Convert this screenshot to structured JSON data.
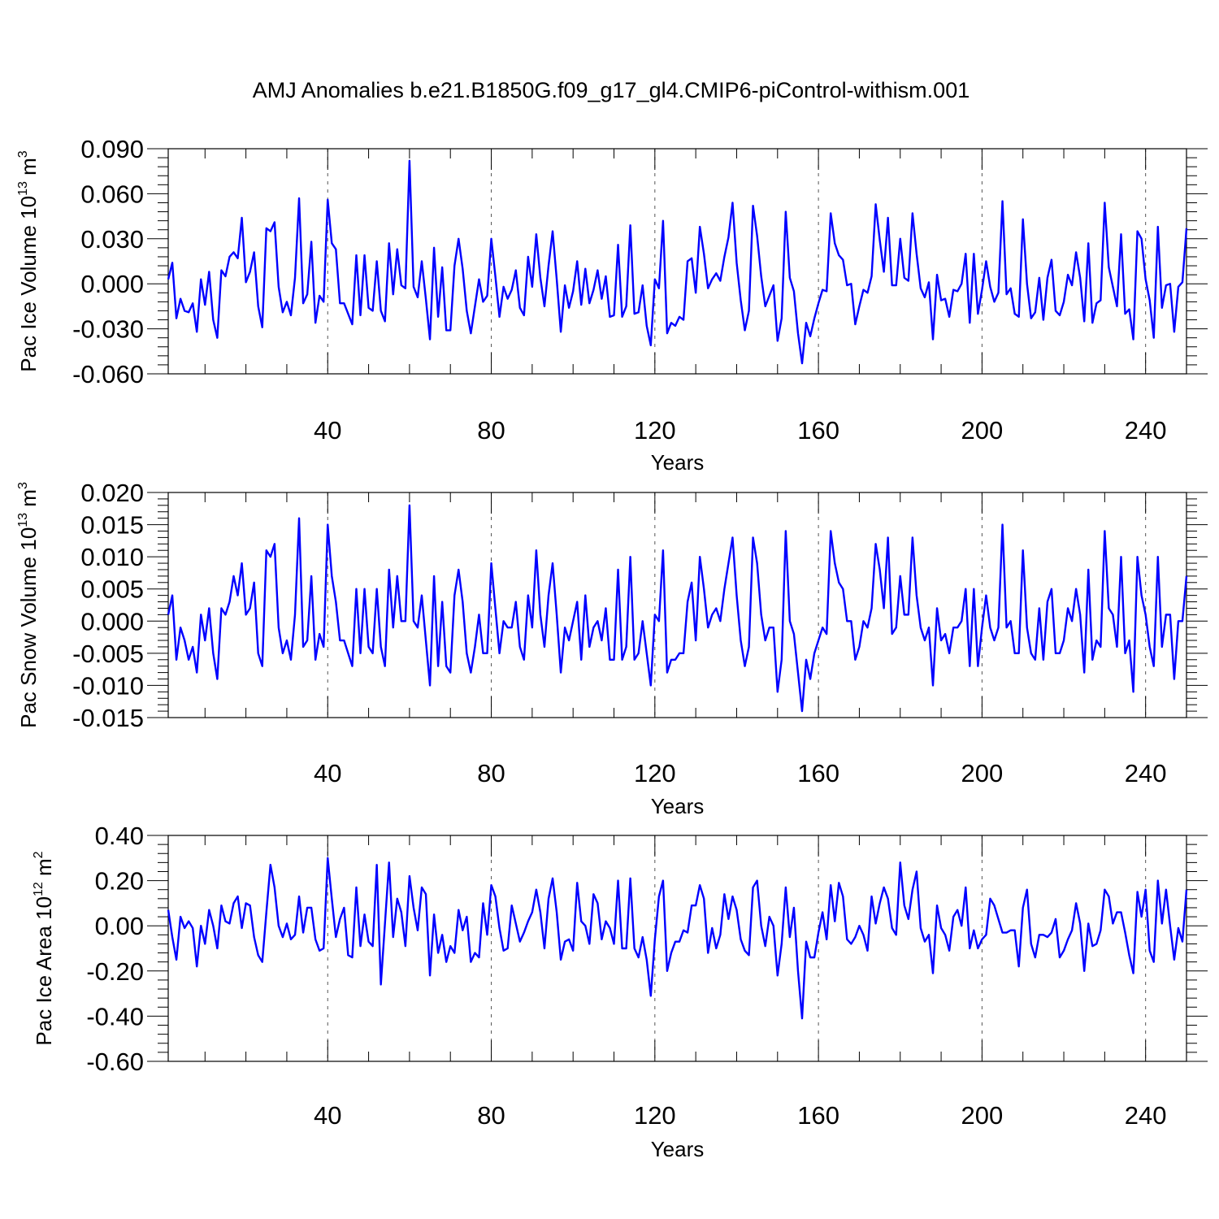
{
  "figure_title": "AMJ Anomalies b.e21.B1850G.f09_g17_gl4.CMIP6-piControl-withism.001",
  "colors": {
    "line": "#0000ff",
    "axis": "#000000",
    "grid": "#555555",
    "background": "#ffffff"
  },
  "chart_data": [
    {
      "type": "line",
      "title": "AMJ Anomalies b.e21.B1850G.f09_g17_gl4.CMIP6-piControl-withism.001",
      "xlabel": "Years",
      "ylabel": {
        "text": "Pac Ice Volume 10",
        "sup1": "13",
        "mid": " m",
        "sup2": "3"
      },
      "xlim": [
        1,
        250
      ],
      "ylim": [
        -0.06,
        0.09
      ],
      "yticks": [
        -0.06,
        -0.03,
        0.0,
        0.03,
        0.06,
        0.09
      ],
      "ytick_labels": [
        "-0.060",
        "-0.030",
        "0.000",
        "0.030",
        "0.060",
        "0.090"
      ],
      "xticks": [
        40,
        80,
        120,
        160,
        200,
        240
      ],
      "xtick_labels": [
        "40",
        "80",
        "120",
        "160",
        "200",
        "240"
      ],
      "grid": "vertical dashed at major x ticks",
      "series": [
        {
          "name": "Pac Ice Volume",
          "values": [
            0.003,
            0.014,
            -0.023,
            -0.01,
            -0.018,
            -0.019,
            -0.013,
            -0.032,
            0.003,
            -0.014,
            0.008,
            -0.024,
            -0.036,
            0.009,
            0.005,
            0.018,
            0.021,
            0.017,
            0.044,
            0.001,
            0.008,
            0.021,
            -0.015,
            -0.029,
            0.037,
            0.035,
            0.041,
            -0.002,
            -0.019,
            -0.012,
            -0.021,
            0.004,
            0.057,
            -0.013,
            -0.007,
            0.028,
            -0.026,
            -0.008,
            -0.012,
            0.056,
            0.027,
            0.023,
            -0.013,
            -0.013,
            -0.02,
            -0.027,
            0.019,
            -0.021,
            0.019,
            -0.016,
            -0.018,
            0.015,
            -0.018,
            -0.025,
            0.027,
            -0.007,
            0.023,
            -0.001,
            -0.003,
            0.082,
            -0.002,
            -0.009,
            0.015,
            -0.01,
            -0.037,
            0.024,
            -0.022,
            0.011,
            -0.031,
            -0.031,
            0.012,
            0.03,
            0.01,
            -0.018,
            -0.033,
            -0.015,
            0.003,
            -0.012,
            -0.008,
            0.03,
            0.005,
            -0.022,
            -0.002,
            -0.01,
            -0.004,
            0.009,
            -0.016,
            -0.021,
            0.018,
            -0.002,
            0.033,
            0.004,
            -0.015,
            0.012,
            0.035,
            0.003,
            -0.032,
            -0.001,
            -0.016,
            -0.005,
            0.015,
            -0.014,
            0.01,
            -0.013,
            -0.004,
            0.009,
            -0.01,
            0.005,
            -0.022,
            -0.021,
            0.026,
            -0.022,
            -0.015,
            0.039,
            -0.02,
            -0.019,
            -0.001,
            -0.028,
            -0.041,
            0.003,
            -0.003,
            0.042,
            -0.033,
            -0.026,
            -0.028,
            -0.022,
            -0.024,
            0.015,
            0.017,
            -0.006,
            0.038,
            0.02,
            -0.003,
            0.003,
            0.007,
            0.002,
            0.018,
            0.031,
            0.054,
            0.014,
            -0.011,
            -0.031,
            -0.018,
            0.052,
            0.032,
            0.005,
            -0.015,
            -0.008,
            -0.001,
            -0.038,
            -0.023,
            0.048,
            0.004,
            -0.005,
            -0.033,
            -0.053,
            -0.026,
            -0.035,
            -0.023,
            -0.013,
            -0.004,
            -0.005,
            0.047,
            0.027,
            0.019,
            0.016,
            -0.001,
            0.0,
            -0.027,
            -0.015,
            -0.004,
            -0.006,
            0.005,
            0.053,
            0.029,
            0.008,
            0.044,
            -0.001,
            -0.001,
            0.03,
            0.004,
            0.002,
            0.047,
            0.02,
            -0.003,
            -0.009,
            0.001,
            -0.037,
            0.006,
            -0.011,
            -0.01,
            -0.022,
            -0.004,
            -0.005,
            0.0,
            0.02,
            -0.026,
            0.02,
            -0.02,
            -0.004,
            0.015,
            -0.002,
            -0.012,
            -0.006,
            0.055,
            -0.007,
            -0.003,
            -0.02,
            -0.022,
            0.043,
            0.0,
            -0.023,
            -0.019,
            0.004,
            -0.024,
            0.004,
            0.016,
            -0.018,
            -0.021,
            -0.012,
            0.006,
            -0.001,
            0.021,
            0.004,
            -0.025,
            0.027,
            -0.026,
            -0.013,
            -0.011,
            0.054,
            0.011,
            -0.002,
            -0.015,
            0.033,
            -0.02,
            -0.017,
            -0.037,
            0.035,
            0.03,
            0.003,
            -0.011,
            -0.036,
            0.038,
            -0.016,
            -0.001,
            0.0,
            -0.032,
            -0.002,
            0.001,
            0.037
          ]
        }
      ]
    },
    {
      "type": "line",
      "xlabel": "Years",
      "ylabel": {
        "text": "Pac Snow Volume 10",
        "sup1": "13",
        "mid": " m",
        "sup2": "3"
      },
      "xlim": [
        1,
        250
      ],
      "ylim": [
        -0.015,
        0.02
      ],
      "yticks": [
        -0.015,
        -0.01,
        -0.005,
        0.0,
        0.005,
        0.01,
        0.015,
        0.02
      ],
      "ytick_labels": [
        "-0.015",
        "-0.010",
        "-0.005",
        "0.000",
        "0.005",
        "0.010",
        "0.015",
        "0.020"
      ],
      "xticks": [
        40,
        80,
        120,
        160,
        200,
        240
      ],
      "xtick_labels": [
        "40",
        "80",
        "120",
        "160",
        "200",
        "240"
      ],
      "grid": "vertical dashed at major x ticks",
      "series": [
        {
          "name": "Pac Snow Volume",
          "values": [
            0.001,
            0.004,
            -0.006,
            -0.001,
            -0.003,
            -0.006,
            -0.004,
            -0.008,
            0.001,
            -0.003,
            0.002,
            -0.005,
            -0.009,
            0.002,
            0.001,
            0.003,
            0.007,
            0.004,
            0.009,
            0.001,
            0.002,
            0.006,
            -0.005,
            -0.007,
            0.011,
            0.01,
            0.012,
            -0.001,
            -0.005,
            -0.003,
            -0.006,
            0.001,
            0.016,
            -0.004,
            -0.003,
            0.007,
            -0.006,
            -0.002,
            -0.004,
            0.015,
            0.007,
            0.003,
            -0.003,
            -0.003,
            -0.005,
            -0.007,
            0.005,
            -0.005,
            0.005,
            -0.004,
            -0.005,
            0.005,
            -0.004,
            -0.007,
            0.008,
            -0.001,
            0.007,
            0.0,
            0.0,
            0.018,
            0.0,
            -0.001,
            0.004,
            -0.003,
            -0.01,
            0.007,
            -0.007,
            0.003,
            -0.007,
            -0.008,
            0.004,
            0.008,
            0.003,
            -0.005,
            -0.008,
            -0.004,
            0.001,
            -0.005,
            -0.005,
            0.009,
            0.002,
            -0.005,
            0.0,
            -0.001,
            -0.001,
            0.003,
            -0.004,
            -0.006,
            0.004,
            -0.001,
            0.011,
            0.001,
            -0.004,
            0.004,
            0.009,
            0.001,
            -0.008,
            -0.001,
            -0.003,
            0.0,
            0.003,
            -0.006,
            0.004,
            -0.004,
            -0.001,
            0.0,
            -0.003,
            0.002,
            -0.006,
            -0.006,
            0.008,
            -0.006,
            -0.004,
            0.01,
            -0.006,
            -0.005,
            0.0,
            -0.005,
            -0.01,
            0.001,
            0.0,
            0.011,
            -0.008,
            -0.006,
            -0.006,
            -0.005,
            -0.005,
            0.003,
            0.006,
            -0.003,
            0.01,
            0.005,
            -0.001,
            0.001,
            0.002,
            0.0,
            0.005,
            0.009,
            0.013,
            0.004,
            -0.003,
            -0.007,
            -0.004,
            0.013,
            0.009,
            0.001,
            -0.003,
            -0.001,
            -0.001,
            -0.011,
            -0.006,
            0.014,
            0.0,
            -0.002,
            -0.008,
            -0.014,
            -0.006,
            -0.009,
            -0.005,
            -0.003,
            -0.001,
            -0.002,
            0.014,
            0.009,
            0.006,
            0.005,
            0.0,
            0.0,
            -0.006,
            -0.004,
            0.0,
            -0.001,
            0.002,
            0.012,
            0.008,
            0.002,
            0.013,
            -0.002,
            -0.001,
            0.007,
            0.001,
            0.001,
            0.013,
            0.004,
            -0.001,
            -0.003,
            -0.001,
            -0.01,
            0.002,
            -0.003,
            -0.002,
            -0.005,
            -0.001,
            -0.001,
            0.0,
            0.005,
            -0.007,
            0.005,
            -0.007,
            -0.001,
            0.004,
            -0.001,
            -0.003,
            -0.001,
            0.015,
            -0.001,
            0.0,
            -0.005,
            -0.005,
            0.011,
            -0.001,
            -0.005,
            -0.006,
            0.002,
            -0.006,
            0.003,
            0.005,
            -0.005,
            -0.005,
            -0.003,
            0.002,
            0.0,
            0.005,
            0.001,
            -0.008,
            0.008,
            -0.006,
            -0.003,
            -0.004,
            0.014,
            0.002,
            0.001,
            -0.004,
            0.01,
            -0.005,
            -0.003,
            -0.011,
            0.01,
            0.004,
            0.001,
            -0.004,
            -0.007,
            0.01,
            -0.004,
            0.001,
            0.001,
            -0.009,
            0.0,
            0.0,
            0.007
          ]
        }
      ]
    },
    {
      "type": "line",
      "xlabel": "Years",
      "ylabel": {
        "text": "Pac Ice Area 10",
        "sup1": "12",
        "mid": " m",
        "sup2": "2"
      },
      "xlim": [
        1,
        250
      ],
      "ylim": [
        -0.6,
        0.4
      ],
      "yticks": [
        -0.6,
        -0.4,
        -0.2,
        0.0,
        0.2,
        0.4
      ],
      "ytick_labels": [
        "-0.60",
        "-0.40",
        "-0.20",
        "0.00",
        "0.20",
        "0.40"
      ],
      "xticks": [
        40,
        80,
        120,
        160,
        200,
        240
      ],
      "xtick_labels": [
        "40",
        "80",
        "120",
        "160",
        "200",
        "240"
      ],
      "grid": "vertical dashed at major x ticks",
      "series": [
        {
          "name": "Pac Ice Area",
          "values": [
            0.07,
            -0.05,
            -0.15,
            0.04,
            -0.01,
            0.02,
            -0.01,
            -0.18,
            0.0,
            -0.08,
            0.07,
            0.0,
            -0.1,
            0.09,
            0.02,
            0.01,
            0.1,
            0.13,
            -0.01,
            0.1,
            0.09,
            -0.05,
            -0.13,
            -0.16,
            0.06,
            0.27,
            0.17,
            0.0,
            -0.05,
            0.01,
            -0.06,
            -0.04,
            0.13,
            -0.03,
            0.08,
            0.08,
            -0.06,
            -0.11,
            -0.1,
            0.3,
            0.12,
            -0.05,
            0.03,
            0.08,
            -0.13,
            -0.14,
            0.17,
            -0.09,
            0.05,
            -0.07,
            -0.09,
            0.27,
            -0.26,
            0.01,
            0.28,
            -0.05,
            0.12,
            0.06,
            -0.09,
            0.22,
            0.08,
            -0.02,
            0.17,
            0.14,
            -0.22,
            0.05,
            -0.12,
            -0.04,
            -0.16,
            -0.09,
            -0.12,
            0.07,
            -0.02,
            0.04,
            -0.16,
            -0.12,
            -0.14,
            0.1,
            -0.04,
            0.18,
            0.13,
            -0.01,
            -0.11,
            -0.1,
            0.09,
            0.01,
            -0.07,
            -0.03,
            0.02,
            0.06,
            0.16,
            0.06,
            -0.1,
            0.12,
            0.21,
            0.06,
            -0.15,
            -0.07,
            -0.06,
            -0.11,
            0.19,
            0.02,
            0.0,
            -0.08,
            0.14,
            0.1,
            -0.06,
            0.02,
            -0.01,
            -0.08,
            0.2,
            -0.1,
            -0.1,
            0.21,
            -0.1,
            -0.14,
            -0.05,
            -0.15,
            -0.31,
            -0.06,
            0.13,
            0.2,
            -0.2,
            -0.12,
            -0.07,
            -0.07,
            -0.02,
            -0.03,
            0.09,
            0.09,
            0.18,
            0.12,
            -0.12,
            -0.01,
            -0.1,
            -0.04,
            0.14,
            0.03,
            0.13,
            0.07,
            -0.06,
            -0.11,
            -0.13,
            0.17,
            0.2,
            0.0,
            -0.09,
            0.04,
            0.0,
            -0.22,
            -0.08,
            0.17,
            -0.05,
            0.08,
            -0.2,
            -0.41,
            -0.07,
            -0.14,
            -0.14,
            -0.03,
            0.06,
            -0.06,
            0.18,
            0.02,
            0.19,
            0.13,
            -0.06,
            -0.08,
            -0.05,
            0.0,
            -0.04,
            -0.11,
            0.13,
            0.01,
            0.1,
            0.17,
            0.12,
            -0.01,
            -0.04,
            0.28,
            0.09,
            0.03,
            0.16,
            0.24,
            -0.01,
            -0.07,
            -0.04,
            -0.21,
            0.09,
            -0.01,
            -0.04,
            -0.11,
            0.04,
            0.07,
            0.0,
            0.17,
            -0.1,
            -0.02,
            -0.1,
            -0.06,
            -0.04,
            0.12,
            0.09,
            0.03,
            -0.03,
            -0.03,
            -0.02,
            -0.02,
            -0.18,
            0.08,
            0.16,
            -0.08,
            -0.14,
            -0.04,
            -0.04,
            -0.05,
            -0.03,
            0.03,
            -0.14,
            -0.11,
            -0.06,
            -0.02,
            0.1,
            0.01,
            -0.2,
            0.01,
            -0.09,
            -0.08,
            -0.02,
            0.16,
            0.13,
            0.01,
            0.06,
            0.06,
            -0.03,
            -0.13,
            -0.21,
            0.15,
            0.04,
            0.16,
            -0.11,
            -0.16,
            0.2,
            0.01,
            0.16,
            0.0,
            -0.15,
            -0.01,
            -0.07,
            0.16
          ]
        }
      ]
    }
  ]
}
